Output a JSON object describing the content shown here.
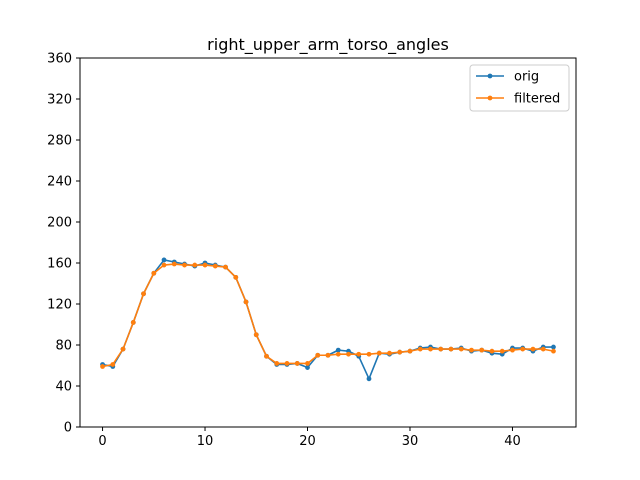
{
  "chart_data": {
    "type": "line",
    "title": "right_upper_arm_torso_angles",
    "xlabel": "",
    "ylabel": "",
    "xlim": [
      -2.2,
      46.2
    ],
    "ylim": [
      0,
      360
    ],
    "xticks": [
      0,
      10,
      20,
      30,
      40
    ],
    "yticks": [
      0,
      40,
      80,
      120,
      160,
      200,
      240,
      280,
      320,
      360
    ],
    "grid": false,
    "legend_position": "top-right",
    "x": [
      0,
      1,
      2,
      3,
      4,
      5,
      6,
      7,
      8,
      9,
      10,
      11,
      12,
      13,
      14,
      15,
      16,
      17,
      18,
      19,
      20,
      21,
      22,
      23,
      24,
      25,
      26,
      27,
      28,
      29,
      30,
      31,
      32,
      33,
      34,
      35,
      36,
      37,
      38,
      39,
      40,
      41,
      42,
      43,
      44
    ],
    "series": [
      {
        "name": "orig",
        "color": "#1f77b4",
        "values": [
          61,
          59,
          76,
          102,
          130,
          150,
          163,
          161,
          159,
          157,
          160,
          158,
          156,
          146,
          122,
          90,
          69,
          61,
          61,
          62,
          58,
          70,
          70,
          75,
          74,
          69,
          47,
          72,
          71,
          73,
          74,
          77,
          78,
          76,
          76,
          77,
          74,
          75,
          72,
          71,
          77,
          77,
          74,
          78,
          78
        ]
      },
      {
        "name": "filtered",
        "color": "#ff7f0e",
        "values": [
          59,
          61,
          76,
          102,
          130,
          150,
          158,
          159,
          158,
          158,
          158,
          157,
          156,
          146,
          122,
          90,
          69,
          62,
          62,
          62,
          62,
          70,
          70,
          71,
          71,
          71,
          71,
          72,
          72,
          73,
          74,
          76,
          76,
          76,
          76,
          76,
          75,
          75,
          74,
          74,
          75,
          76,
          76,
          76,
          74
        ]
      }
    ]
  }
}
